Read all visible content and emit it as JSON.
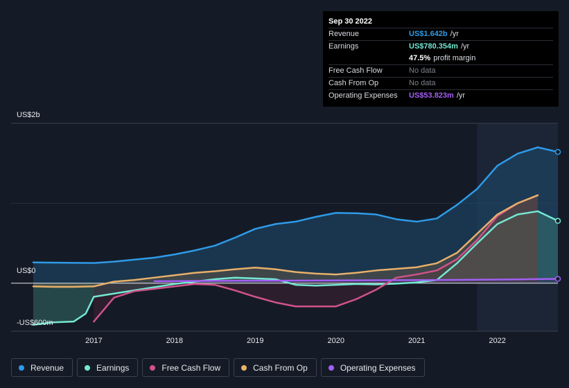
{
  "tooltip": {
    "date": "Sep 30 2022",
    "rows": [
      {
        "label": "Revenue",
        "value": "US$1.642b",
        "unit": "/yr",
        "color": "#2e9be8"
      },
      {
        "label": "Earnings",
        "value": "US$780.354m",
        "unit": "/yr",
        "color": "#74e8d4"
      },
      {
        "label": "",
        "value": "47.5%",
        "unit": "profit margin",
        "color": "#ffffff"
      },
      {
        "label": "Free Cash Flow",
        "value": "No data",
        "unit": "",
        "color": "#7d838c"
      },
      {
        "label": "Cash From Op",
        "value": "No data",
        "unit": "",
        "color": "#7d838c"
      },
      {
        "label": "Operating Expenses",
        "value": "US$53.823m",
        "unit": "/yr",
        "color": "#a35ff5"
      }
    ]
  },
  "chart_data": {
    "type": "line",
    "y_axis_labels": {
      "top": "US$2b",
      "zero": "US$0",
      "bottom": "-US$600m"
    },
    "ylim": [
      -600,
      2000
    ],
    "xlim": [
      2016.25,
      2022.75
    ],
    "x_ticks": [
      {
        "value": 2017,
        "label": "2017"
      },
      {
        "value": 2018,
        "label": "2018"
      },
      {
        "value": 2019,
        "label": "2019"
      },
      {
        "value": 2020,
        "label": "2020"
      },
      {
        "value": 2021,
        "label": "2021"
      },
      {
        "value": 2022,
        "label": "2022"
      }
    ],
    "forecast_start": 2021.75,
    "series": [
      {
        "name": "Revenue",
        "color": "#2e9be8",
        "fill": "#1f4d70",
        "points": [
          [
            2016.25,
            260
          ],
          [
            2016.75,
            255
          ],
          [
            2017.0,
            253
          ],
          [
            2017.25,
            270
          ],
          [
            2017.5,
            295
          ],
          [
            2017.75,
            320
          ],
          [
            2018.0,
            360
          ],
          [
            2018.25,
            410
          ],
          [
            2018.5,
            470
          ],
          [
            2018.75,
            570
          ],
          [
            2019.0,
            680
          ],
          [
            2019.25,
            740
          ],
          [
            2019.5,
            770
          ],
          [
            2019.75,
            830
          ],
          [
            2020.0,
            880
          ],
          [
            2020.25,
            875
          ],
          [
            2020.5,
            860
          ],
          [
            2020.75,
            800
          ],
          [
            2021.0,
            770
          ],
          [
            2021.25,
            810
          ],
          [
            2021.5,
            980
          ],
          [
            2021.75,
            1180
          ],
          [
            2022.0,
            1470
          ],
          [
            2022.25,
            1620
          ],
          [
            2022.5,
            1700
          ],
          [
            2022.75,
            1642
          ]
        ]
      },
      {
        "name": "Earnings",
        "color": "#74e8d4",
        "fill": "#3b7f76",
        "points": [
          [
            2016.25,
            -520
          ],
          [
            2016.5,
            -490
          ],
          [
            2016.75,
            -480
          ],
          [
            2016.9,
            -380
          ],
          [
            2017.0,
            -170
          ],
          [
            2017.25,
            -130
          ],
          [
            2017.5,
            -90
          ],
          [
            2017.75,
            -50
          ],
          [
            2018.0,
            -10
          ],
          [
            2018.25,
            20
          ],
          [
            2018.5,
            50
          ],
          [
            2018.75,
            70
          ],
          [
            2019.0,
            60
          ],
          [
            2019.25,
            50
          ],
          [
            2019.5,
            -20
          ],
          [
            2019.75,
            -30
          ],
          [
            2020.0,
            -20
          ],
          [
            2020.25,
            -10
          ],
          [
            2020.5,
            -15
          ],
          [
            2020.75,
            -5
          ],
          [
            2021.0,
            10
          ],
          [
            2021.25,
            40
          ],
          [
            2021.5,
            250
          ],
          [
            2021.75,
            500
          ],
          [
            2022.0,
            740
          ],
          [
            2022.25,
            860
          ],
          [
            2022.5,
            900
          ],
          [
            2022.75,
            780
          ]
        ]
      },
      {
        "name": "Free Cash Flow",
        "color": "#d0538b",
        "fill": "#4a2438",
        "points": [
          [
            2017.0,
            -480
          ],
          [
            2017.25,
            -180
          ],
          [
            2017.5,
            -100
          ],
          [
            2017.75,
            -70
          ],
          [
            2018.0,
            -40
          ],
          [
            2018.25,
            -10
          ],
          [
            2018.5,
            -20
          ],
          [
            2018.75,
            -90
          ],
          [
            2019.0,
            -170
          ],
          [
            2019.25,
            -240
          ],
          [
            2019.5,
            -290
          ],
          [
            2019.75,
            -290
          ],
          [
            2020.0,
            -290
          ],
          [
            2020.25,
            -200
          ],
          [
            2020.5,
            -80
          ],
          [
            2020.75,
            70
          ],
          [
            2021.0,
            110
          ],
          [
            2021.25,
            160
          ],
          [
            2021.5,
            300
          ],
          [
            2021.75,
            540
          ],
          [
            2022.0,
            840
          ],
          [
            2022.25,
            1000
          ],
          [
            2022.5,
            1100
          ]
        ]
      },
      {
        "name": "Cash From Op",
        "color": "#e9b06a",
        "fill": "#6a5a48",
        "points": [
          [
            2016.25,
            -40
          ],
          [
            2016.5,
            -45
          ],
          [
            2016.75,
            -45
          ],
          [
            2017.0,
            -40
          ],
          [
            2017.25,
            20
          ],
          [
            2017.5,
            40
          ],
          [
            2017.75,
            70
          ],
          [
            2018.0,
            100
          ],
          [
            2018.25,
            130
          ],
          [
            2018.5,
            150
          ],
          [
            2018.75,
            175
          ],
          [
            2019.0,
            195
          ],
          [
            2019.25,
            175
          ],
          [
            2019.5,
            140
          ],
          [
            2019.75,
            120
          ],
          [
            2020.0,
            110
          ],
          [
            2020.25,
            130
          ],
          [
            2020.5,
            160
          ],
          [
            2020.75,
            180
          ],
          [
            2021.0,
            200
          ],
          [
            2021.25,
            250
          ],
          [
            2021.5,
            380
          ],
          [
            2021.75,
            620
          ],
          [
            2022.0,
            860
          ],
          [
            2022.25,
            1000
          ],
          [
            2022.5,
            1100
          ]
        ]
      },
      {
        "name": "Operating Expenses",
        "color": "#a35ff5",
        "fill": "#3b2e5e",
        "points": [
          [
            2017.75,
            25
          ],
          [
            2018.25,
            28
          ],
          [
            2018.75,
            30
          ],
          [
            2019.25,
            32
          ],
          [
            2019.75,
            34
          ],
          [
            2020.25,
            36
          ],
          [
            2020.75,
            38
          ],
          [
            2021.25,
            40
          ],
          [
            2021.75,
            44
          ],
          [
            2022.25,
            48
          ],
          [
            2022.75,
            54
          ]
        ]
      }
    ]
  },
  "legend": [
    {
      "label": "Revenue",
      "color": "#2e9be8"
    },
    {
      "label": "Earnings",
      "color": "#74e8d4"
    },
    {
      "label": "Free Cash Flow",
      "color": "#d0538b"
    },
    {
      "label": "Cash From Op",
      "color": "#e9b06a"
    },
    {
      "label": "Operating Expenses",
      "color": "#a35ff5"
    }
  ]
}
